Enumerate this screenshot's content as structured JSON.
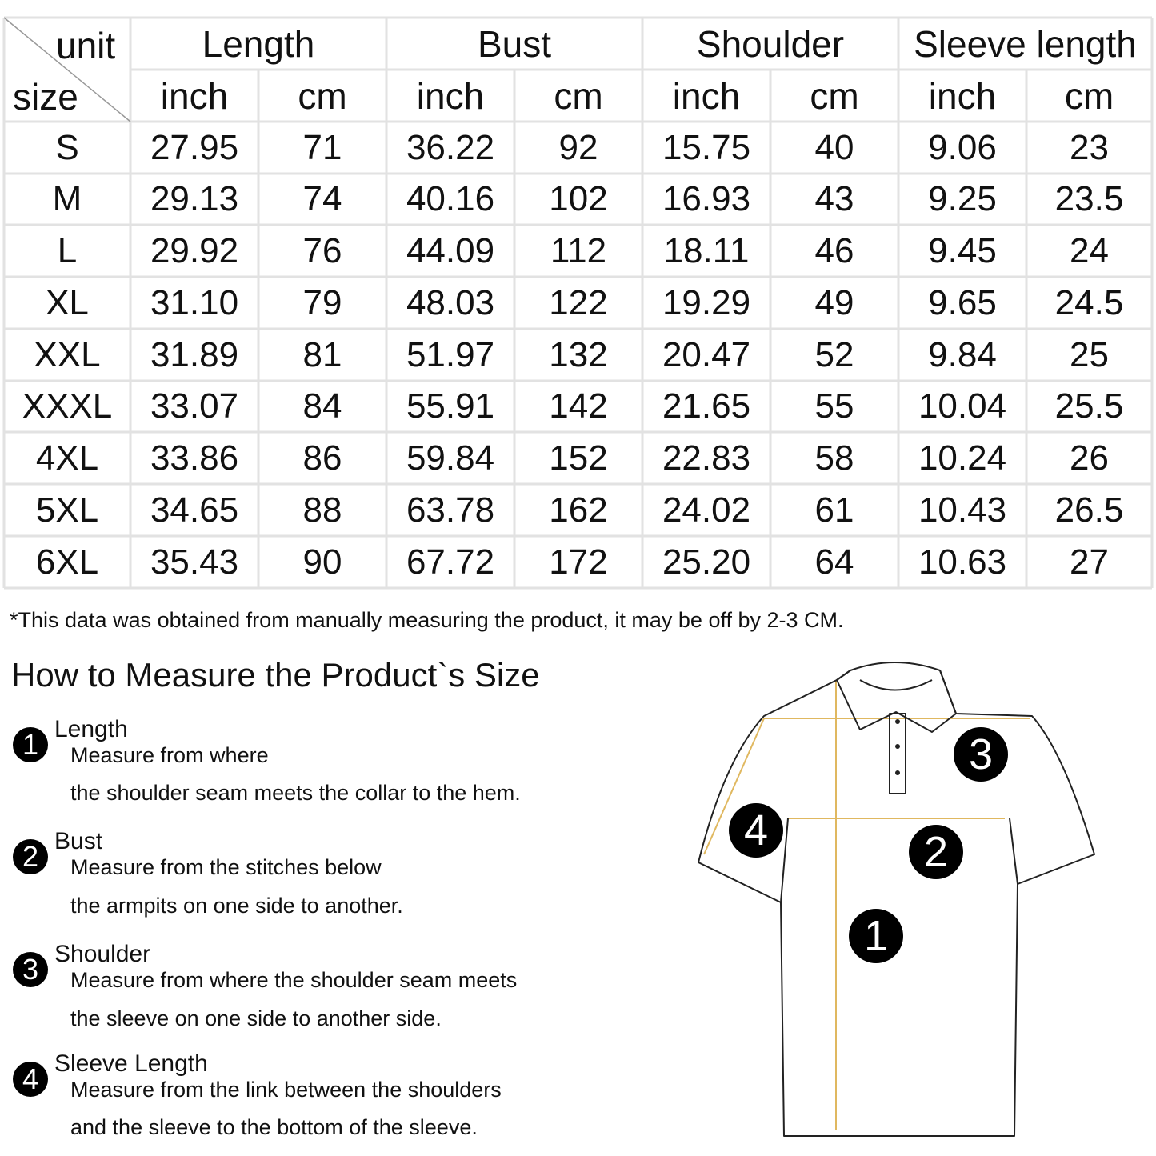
{
  "table": {
    "corner": {
      "top": "unit",
      "bottom": "size"
    },
    "groups": [
      "Length",
      "Bust",
      "Shoulder",
      "Sleeve length"
    ],
    "units": [
      "inch",
      "cm"
    ],
    "rows": [
      [
        "S",
        "27.95",
        "71",
        "36.22",
        "92",
        "15.75",
        "40",
        "9.06",
        "23"
      ],
      [
        "M",
        "29.13",
        "74",
        "40.16",
        "102",
        "16.93",
        "43",
        "9.25",
        "23.5"
      ],
      [
        "L",
        "29.92",
        "76",
        "44.09",
        "112",
        "18.11",
        "46",
        "9.45",
        "24"
      ],
      [
        "XL",
        "31.10",
        "79",
        "48.03",
        "122",
        "19.29",
        "49",
        "9.65",
        "24.5"
      ],
      [
        "XXL",
        "31.89",
        "81",
        "51.97",
        "132",
        "20.47",
        "52",
        "9.84",
        "25"
      ],
      [
        "XXXL",
        "33.07",
        "84",
        "55.91",
        "142",
        "21.65",
        "55",
        "10.04",
        "25.5"
      ],
      [
        "4XL",
        "33.86",
        "86",
        "59.84",
        "152",
        "22.83",
        "58",
        "10.24",
        "26"
      ],
      [
        "5XL",
        "34.65",
        "88",
        "63.78",
        "162",
        "24.02",
        "61",
        "10.43",
        "26.5"
      ],
      [
        "6XL",
        "35.43",
        "90",
        "67.72",
        "172",
        "25.20",
        "64",
        "10.63",
        "27"
      ]
    ]
  },
  "note": "*This data was obtained from manually measuring the product, it may be off by 2-3 CM.",
  "guide": {
    "title": "How to Measure the Product`s Size",
    "items": [
      {
        "number": "1",
        "title": "Length",
        "lines": [
          "Measure from where",
          "the shoulder seam meets the collar to the hem."
        ]
      },
      {
        "number": "2",
        "title": "Bust",
        "lines": [
          "Measure from the stitches below",
          "the armpits on one side to another."
        ]
      },
      {
        "number": "3",
        "title": "Shoulder",
        "lines": [
          "Measure from where the shoulder seam meets",
          "the sleeve on one side to another side."
        ]
      },
      {
        "number": "4",
        "title": "Sleeve Length",
        "lines": [
          "Measure from the link between the shoulders",
          "and the sleeve to the bottom of the sleeve."
        ]
      }
    ]
  }
}
